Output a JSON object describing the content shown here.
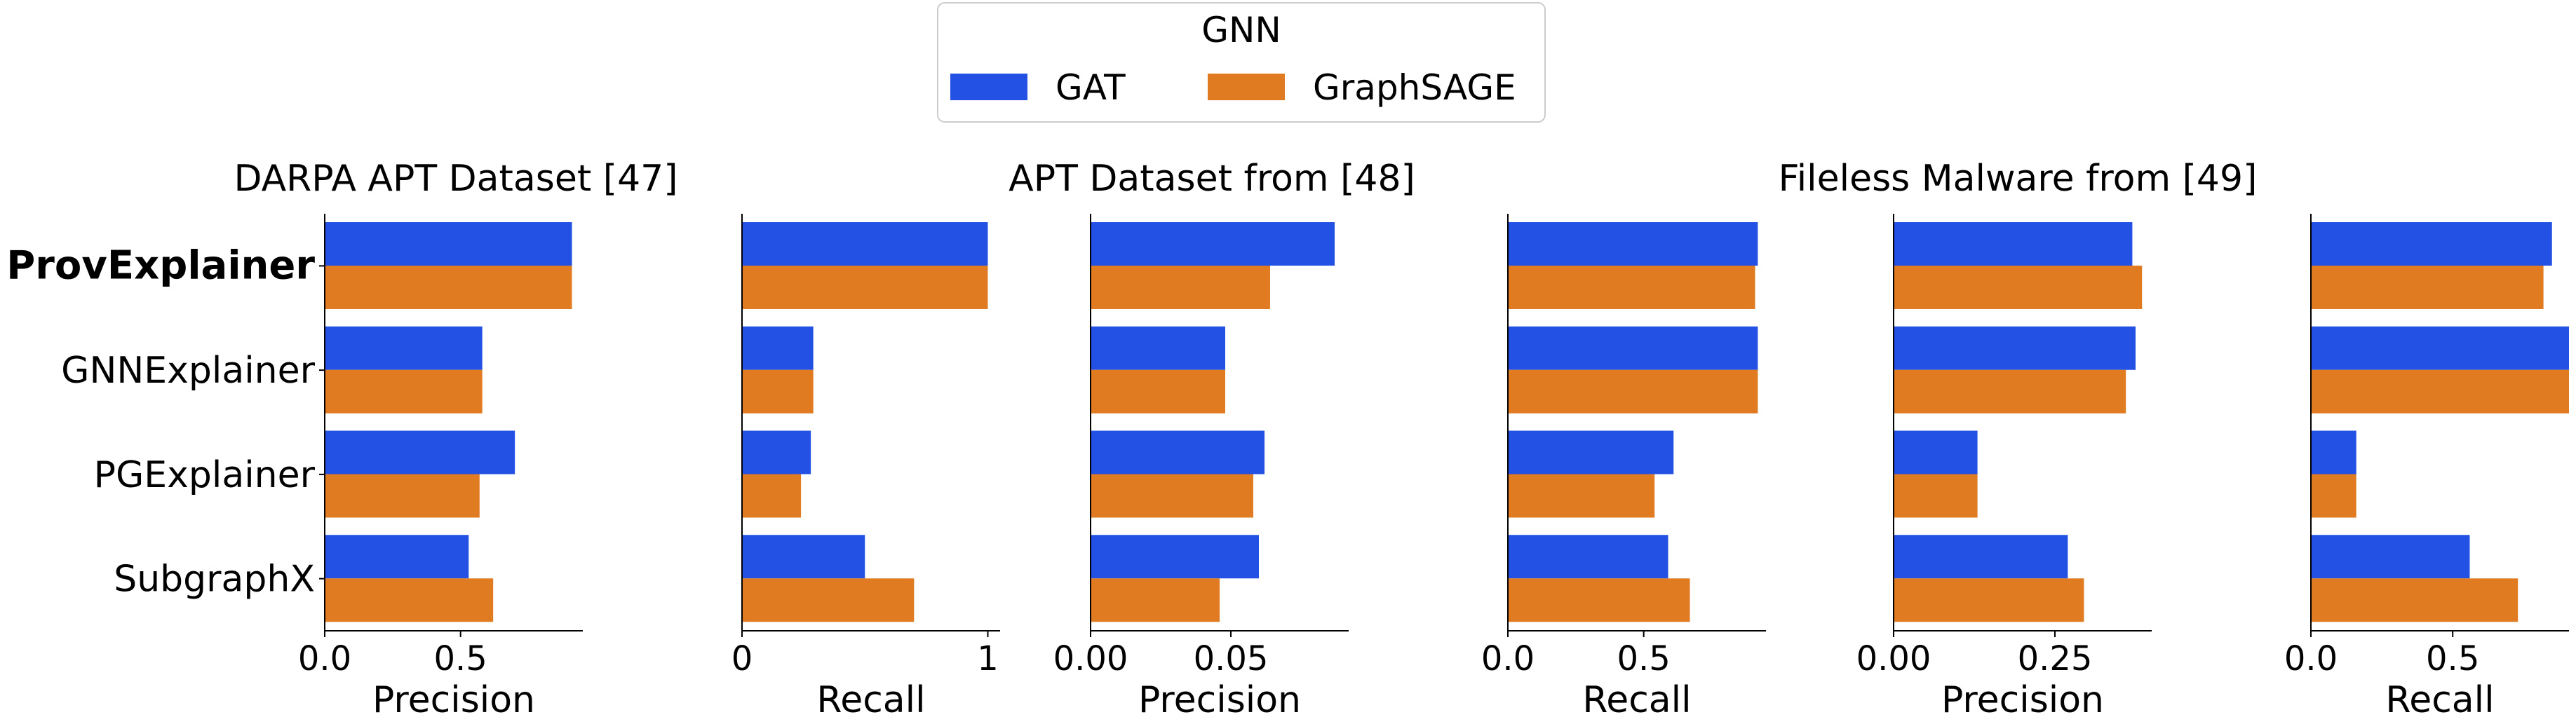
{
  "legend": {
    "title": "GNN",
    "entries": [
      {
        "name": "GAT",
        "color": "#2351e3"
      },
      {
        "name": "GraphSAGE",
        "color": "#e07b22"
      }
    ]
  },
  "chart_data": [
    {
      "type": "bar",
      "orientation": "horizontal",
      "title": "DARPA APT Dataset [47]",
      "xlabel": "Precision",
      "categories": [
        "ProvExplainer",
        "GNNExplainer",
        "PGExplainer",
        "SubgraphX"
      ],
      "series": [
        {
          "name": "GAT",
          "values": [
            0.91,
            0.58,
            0.7,
            0.53
          ]
        },
        {
          "name": "GraphSAGE",
          "values": [
            0.91,
            0.58,
            0.57,
            0.62
          ]
        }
      ],
      "xlim": [
        0,
        0.95
      ],
      "xticks": [
        0,
        0.5
      ],
      "xtick_labels": [
        "0.0",
        "0.5"
      ]
    },
    {
      "type": "bar",
      "orientation": "horizontal",
      "title": "",
      "xlabel": "Recall",
      "categories": [
        "ProvExplainer",
        "GNNExplainer",
        "PGExplainer",
        "SubgraphX"
      ],
      "series": [
        {
          "name": "GAT",
          "values": [
            1.0,
            0.29,
            0.28,
            0.5
          ]
        },
        {
          "name": "GraphSAGE",
          "values": [
            1.0,
            0.29,
            0.24,
            0.7
          ]
        }
      ],
      "xlim": [
        0,
        1.05
      ],
      "xticks": [
        0,
        1
      ],
      "xtick_labels": [
        "0",
        "1"
      ]
    },
    {
      "type": "bar",
      "orientation": "horizontal",
      "title": "APT Dataset from [48]",
      "xlabel": "Precision",
      "categories": [
        "ProvExplainer",
        "GNNExplainer",
        "PGExplainer",
        "SubgraphX"
      ],
      "series": [
        {
          "name": "GAT",
          "values": [
            0.087,
            0.048,
            0.062,
            0.06
          ]
        },
        {
          "name": "GraphSAGE",
          "values": [
            0.064,
            0.048,
            0.058,
            0.046
          ]
        }
      ],
      "xlim": [
        0,
        0.092
      ],
      "xticks": [
        0,
        0.05
      ],
      "xtick_labels": [
        "0.00",
        "0.05"
      ]
    },
    {
      "type": "bar",
      "orientation": "horizontal",
      "title": "",
      "xlabel": "Recall",
      "categories": [
        "ProvExplainer",
        "GNNExplainer",
        "PGExplainer",
        "SubgraphX"
      ],
      "series": [
        {
          "name": "GAT",
          "values": [
            0.92,
            0.92,
            0.61,
            0.59
          ]
        },
        {
          "name": "GraphSAGE",
          "values": [
            0.91,
            0.92,
            0.54,
            0.67
          ]
        }
      ],
      "xlim": [
        0,
        0.95
      ],
      "xticks": [
        0,
        0.5
      ],
      "xtick_labels": [
        "0.0",
        "0.5"
      ]
    },
    {
      "type": "bar",
      "orientation": "horizontal",
      "title": "Fileless Malware from [49]",
      "xlabel": "Precision",
      "categories": [
        "ProvExplainer",
        "GNNExplainer",
        "PGExplainer",
        "SubgraphX"
      ],
      "series": [
        {
          "name": "GAT",
          "values": [
            0.37,
            0.375,
            0.13,
            0.27
          ]
        },
        {
          "name": "GraphSAGE",
          "values": [
            0.385,
            0.36,
            0.13,
            0.295
          ]
        }
      ],
      "xlim": [
        0,
        0.4
      ],
      "xticks": [
        0,
        0.25
      ],
      "xtick_labels": [
        "0.00",
        "0.25"
      ]
    },
    {
      "type": "bar",
      "orientation": "horizontal",
      "title": "",
      "xlabel": "Recall",
      "categories": [
        "ProvExplainer",
        "GNNExplainer",
        "PGExplainer",
        "SubgraphX"
      ],
      "series": [
        {
          "name": "GAT",
          "values": [
            0.85,
            0.91,
            0.16,
            0.56
          ]
        },
        {
          "name": "GraphSAGE",
          "values": [
            0.82,
            0.91,
            0.16,
            0.73
          ]
        }
      ],
      "xlim": [
        0,
        0.91
      ],
      "xticks": [
        0,
        0.5
      ],
      "xtick_labels": [
        "0.0",
        "0.5"
      ]
    }
  ]
}
